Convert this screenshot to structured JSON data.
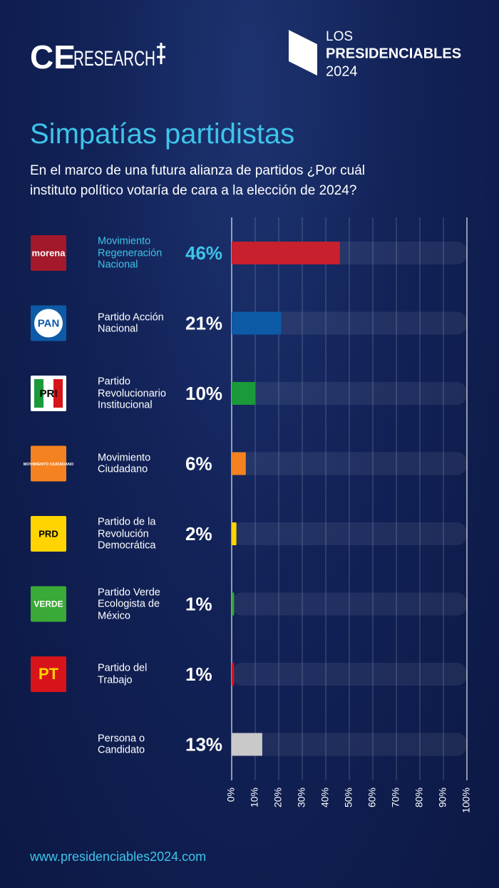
{
  "header": {
    "brand": "CE",
    "brand_rest": "RESEARCH",
    "series_top": "LOS",
    "series_name": "PRESIDENCIABLES",
    "series_year": "2024"
  },
  "chart_data": {
    "type": "bar",
    "orientation": "horizontal",
    "title": "Simpatías partidistas",
    "subtitle": "En el marco de una futura alianza de partidos ¿Por cuál instituto político votaría de cara a la elección de 2024?",
    "categories": [
      "Movimiento Regeneración Nacional",
      "Partido Acción Nacional",
      "Partido Revolucionario Institucional",
      "Movimiento Ciudadano",
      "Partido de la Revolución Democrática",
      "Partido Verde Ecologista de México",
      "Partido del Trabajo",
      "Persona o Candidato"
    ],
    "logos": [
      "morena",
      "PAN",
      "PRI",
      "MOVIMIENTO CIUDADANO",
      "PRD",
      "VERDE",
      "PT",
      null
    ],
    "values": [
      46,
      21,
      10,
      6,
      2,
      1,
      1,
      13
    ],
    "value_labels": [
      "46%",
      "21%",
      "10%",
      "6%",
      "2%",
      "1%",
      "1%",
      "13%"
    ],
    "colors": [
      "#c8202f",
      "#0d5aa7",
      "#1a9a3a",
      "#f58220",
      "#ffd400",
      "#3aa935",
      "#d7141a",
      "#c9c9c9"
    ],
    "highlight_index": 0,
    "xlim": [
      0,
      100
    ],
    "xticks": [
      {
        "value": 0,
        "label": "0%"
      },
      {
        "value": 10,
        "label": "10%"
      },
      {
        "value": 20,
        "label": "20%"
      },
      {
        "value": 30,
        "label": "30%"
      },
      {
        "value": 40,
        "label": "40%"
      },
      {
        "value": 50,
        "label": "50%"
      },
      {
        "value": 60,
        "label": "60%"
      },
      {
        "value": 70,
        "label": "70%"
      },
      {
        "value": 80,
        "label": "80%"
      },
      {
        "value": 90,
        "label": "90%"
      },
      {
        "value": 100,
        "label": "100%"
      }
    ],
    "grid": true
  },
  "footer": "www.presidenciables2024.com"
}
